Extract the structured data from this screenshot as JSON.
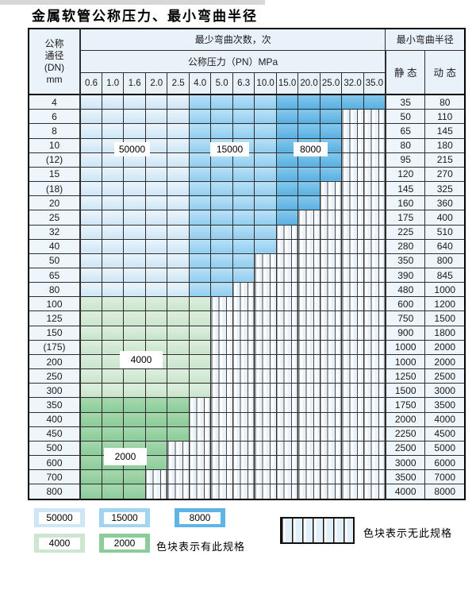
{
  "page": {
    "title": "金属软管公称压力、最小弯曲半径"
  },
  "table": {
    "header": {
      "dn_lines": [
        "公称",
        "通径",
        "(DN)",
        "mm"
      ],
      "bend_cycles_label": "最少弯曲次数，次",
      "pressure_label": "公称压力（PN）MPa",
      "pressure_columns": [
        "0.6",
        "1.0",
        "1.6",
        "2.0",
        "2.5",
        "4.0",
        "5.0",
        "6.3",
        "10.0",
        "15.0",
        "20.0",
        "25.0",
        "32.0",
        "35.0"
      ],
      "radius_label": "最小弯曲半径",
      "static_label": "静 态",
      "dynamic_label": "动 态"
    },
    "cycle_color_legend": {
      "c50000": "#cfe6f6",
      "c15000": "#a0d4f1",
      "c8000": "#5fb4e5",
      "c4000": "#cde6cf",
      "c2000": "#8bcc99"
    },
    "column_cycle_groups_blue_rows": {
      "cols_0.6_to_2.5": "50000",
      "cols_4.0_to_10.0": "15000",
      "cols_15.0_to_35.0": "8000"
    },
    "row_cycle_groups_green_rows": {
      "dn_100_to_300": "4000",
      "dn_350_to_800": "2000"
    },
    "rows": [
      {
        "dn": "4",
        "available": 14,
        "group": "blue",
        "static": "35",
        "dynamic": "80"
      },
      {
        "dn": "6",
        "available": 12,
        "group": "blue",
        "static": "50",
        "dynamic": "110"
      },
      {
        "dn": "8",
        "available": 12,
        "group": "blue",
        "static": "65",
        "dynamic": "145"
      },
      {
        "dn": "10",
        "available": 12,
        "group": "blue",
        "static": "80",
        "dynamic": "180"
      },
      {
        "dn": "(12)",
        "available": 12,
        "group": "blue",
        "static": "95",
        "dynamic": "215"
      },
      {
        "dn": "15",
        "available": 12,
        "group": "blue",
        "static": "120",
        "dynamic": "270"
      },
      {
        "dn": "(18)",
        "available": 11,
        "group": "blue",
        "static": "145",
        "dynamic": "325"
      },
      {
        "dn": "20",
        "available": 11,
        "group": "blue",
        "static": "160",
        "dynamic": "360"
      },
      {
        "dn": "25",
        "available": 10,
        "group": "blue",
        "static": "175",
        "dynamic": "400"
      },
      {
        "dn": "32",
        "available": 9,
        "group": "blue",
        "static": "225",
        "dynamic": "510"
      },
      {
        "dn": "40",
        "available": 9,
        "group": "blue",
        "static": "280",
        "dynamic": "640"
      },
      {
        "dn": "50",
        "available": 8,
        "group": "blue",
        "static": "350",
        "dynamic": "800"
      },
      {
        "dn": "65",
        "available": 8,
        "group": "blue",
        "static": "390",
        "dynamic": "845"
      },
      {
        "dn": "80",
        "available": 7,
        "group": "blue",
        "static": "480",
        "dynamic": "1000"
      },
      {
        "dn": "100",
        "available": 6,
        "group": "g4",
        "static": "600",
        "dynamic": "1200"
      },
      {
        "dn": "125",
        "available": 6,
        "group": "g4",
        "static": "750",
        "dynamic": "1500"
      },
      {
        "dn": "150",
        "available": 6,
        "group": "g4",
        "static": "900",
        "dynamic": "1800"
      },
      {
        "dn": "(175)",
        "available": 6,
        "group": "g4",
        "static": "1000",
        "dynamic": "2000"
      },
      {
        "dn": "200",
        "available": 6,
        "group": "g4",
        "static": "1000",
        "dynamic": "2000"
      },
      {
        "dn": "250",
        "available": 6,
        "group": "g4",
        "static": "1250",
        "dynamic": "2500"
      },
      {
        "dn": "300",
        "available": 6,
        "group": "g4",
        "static": "1500",
        "dynamic": "3000"
      },
      {
        "dn": "350",
        "available": 5,
        "group": "g2",
        "static": "1750",
        "dynamic": "3500"
      },
      {
        "dn": "400",
        "available": 5,
        "group": "g2",
        "static": "2000",
        "dynamic": "4000"
      },
      {
        "dn": "450",
        "available": 5,
        "group": "g2",
        "static": "2250",
        "dynamic": "4500"
      },
      {
        "dn": "500",
        "available": 4,
        "group": "g2",
        "static": "2500",
        "dynamic": "5000"
      },
      {
        "dn": "600",
        "available": 4,
        "group": "g2",
        "static": "3000",
        "dynamic": "6000"
      },
      {
        "dn": "700",
        "available": 3,
        "group": "g2",
        "static": "3500",
        "dynamic": "7000"
      },
      {
        "dn": "800",
        "available": 3,
        "group": "g2",
        "static": "4000",
        "dynamic": "8000"
      }
    ],
    "grid_tags": {
      "t50000": "50000",
      "t15000": "15000",
      "t8000": "8000",
      "t4000": "4000",
      "t2000": "2000"
    }
  },
  "legend": {
    "chips": [
      {
        "label": "50000"
      },
      {
        "label": "15000"
      },
      {
        "label": "8000"
      },
      {
        "label": "4000"
      },
      {
        "label": "2000"
      }
    ],
    "available_text": "色块表示有此规格",
    "unavailable_text": "色块表示无此规格"
  }
}
